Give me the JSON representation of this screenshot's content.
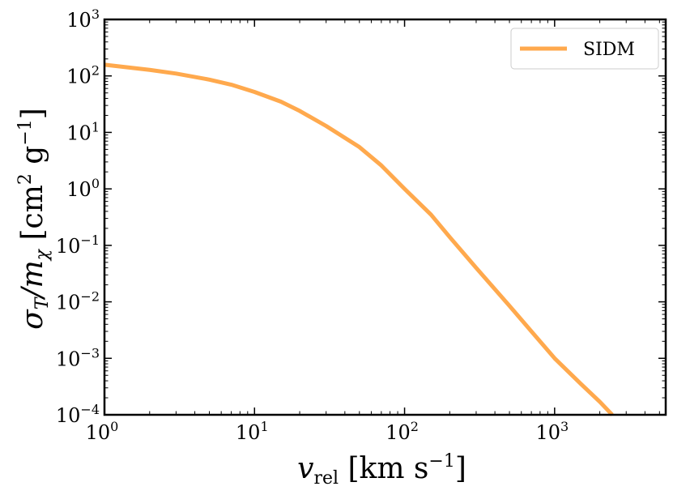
{
  "chart_data": {
    "type": "line",
    "title": "",
    "xlabel": {
      "main": "v",
      "sub": "rel",
      "rest": " [km s",
      "sup": "−1",
      "close": "]"
    },
    "ylabel": {
      "main": "σ",
      "sub": "T",
      "mid": "/m",
      "sub2": "χ",
      "rest": " [cm",
      "sup1": "2",
      "rest2": " g",
      "sup2": "−1",
      "close": "]"
    },
    "x_scale": "log",
    "y_scale": "log",
    "xlim": [
      1,
      5500
    ],
    "ylim": [
      0.0001,
      1000
    ],
    "x_ticks": [
      {
        "value": 1,
        "base": "10",
        "exp": "0"
      },
      {
        "value": 10,
        "base": "10",
        "exp": "1"
      },
      {
        "value": 100,
        "base": "10",
        "exp": "2"
      },
      {
        "value": 1000,
        "base": "10",
        "exp": "3"
      }
    ],
    "y_ticks": [
      {
        "value": 0.0001,
        "base": "10",
        "exp": "−4"
      },
      {
        "value": 0.001,
        "base": "10",
        "exp": "−3"
      },
      {
        "value": 0.01,
        "base": "10",
        "exp": "−2"
      },
      {
        "value": 0.1,
        "base": "10",
        "exp": "−1"
      },
      {
        "value": 1,
        "base": "10",
        "exp": "0"
      },
      {
        "value": 10,
        "base": "10",
        "exp": "1"
      },
      {
        "value": 100,
        "base": "10",
        "exp": "2"
      },
      {
        "value": 1000,
        "base": "10",
        "exp": "3"
      }
    ],
    "grid": false,
    "legend_position": "top-right",
    "series": [
      {
        "name": "SIDM",
        "color": "#FFA94D",
        "x": [
          1,
          2,
          3,
          5,
          7,
          10,
          15,
          20,
          30,
          50,
          70,
          100,
          150,
          200,
          300,
          500,
          700,
          1000,
          1500,
          2000,
          2420
        ],
        "y": [
          158,
          128,
          110,
          86,
          70,
          52,
          35,
          24,
          13,
          5.5,
          2.6,
          1.0,
          0.35,
          0.14,
          0.04,
          0.0085,
          0.003,
          0.001,
          0.00035,
          0.00017,
          0.0001
        ]
      }
    ]
  }
}
